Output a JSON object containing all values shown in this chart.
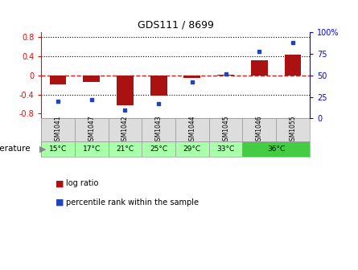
{
  "title": "GDS111 / 8699",
  "samples": [
    "GSM1041",
    "GSM1047",
    "GSM1042",
    "GSM1043",
    "GSM1044",
    "GSM1045",
    "GSM1046",
    "GSM1055"
  ],
  "log_ratios": [
    -0.18,
    -0.14,
    -0.62,
    -0.42,
    -0.06,
    0.02,
    0.32,
    0.43
  ],
  "percentile_ranks": [
    20,
    22,
    10,
    17,
    42,
    52,
    78,
    88
  ],
  "ylim_left": [
    -0.9,
    0.9
  ],
  "ylim_right": [
    0,
    100
  ],
  "yticks_left": [
    -0.8,
    -0.4,
    0.0,
    0.4,
    0.8
  ],
  "yticks_right": [
    0,
    25,
    50,
    75,
    100
  ],
  "bar_color": "#aa1111",
  "dot_color": "#2244bb",
  "zero_line_color": "#cc2222",
  "bg_color": "#ffffff",
  "legend_log": "log ratio",
  "legend_pct": "percentile rank within the sample",
  "temp_label": "temperature",
  "sample_bg": "#dddddd",
  "temp_light": "#aaffaa",
  "temp_dark": "#44cc44",
  "temp_groups": [
    {
      "label": "15°C",
      "start": 0,
      "end": 1,
      "color": "#aaffaa"
    },
    {
      "label": "17°C",
      "start": 1,
      "end": 2,
      "color": "#aaffaa"
    },
    {
      "label": "21°C",
      "start": 2,
      "end": 3,
      "color": "#aaffaa"
    },
    {
      "label": "25°C",
      "start": 3,
      "end": 4,
      "color": "#aaffaa"
    },
    {
      "label": "29°C",
      "start": 4,
      "end": 5,
      "color": "#aaffaa"
    },
    {
      "label": "33°C",
      "start": 5,
      "end": 6,
      "color": "#aaffaa"
    },
    {
      "label": "36°C",
      "start": 6,
      "end": 8,
      "color": "#44cc44"
    }
  ]
}
